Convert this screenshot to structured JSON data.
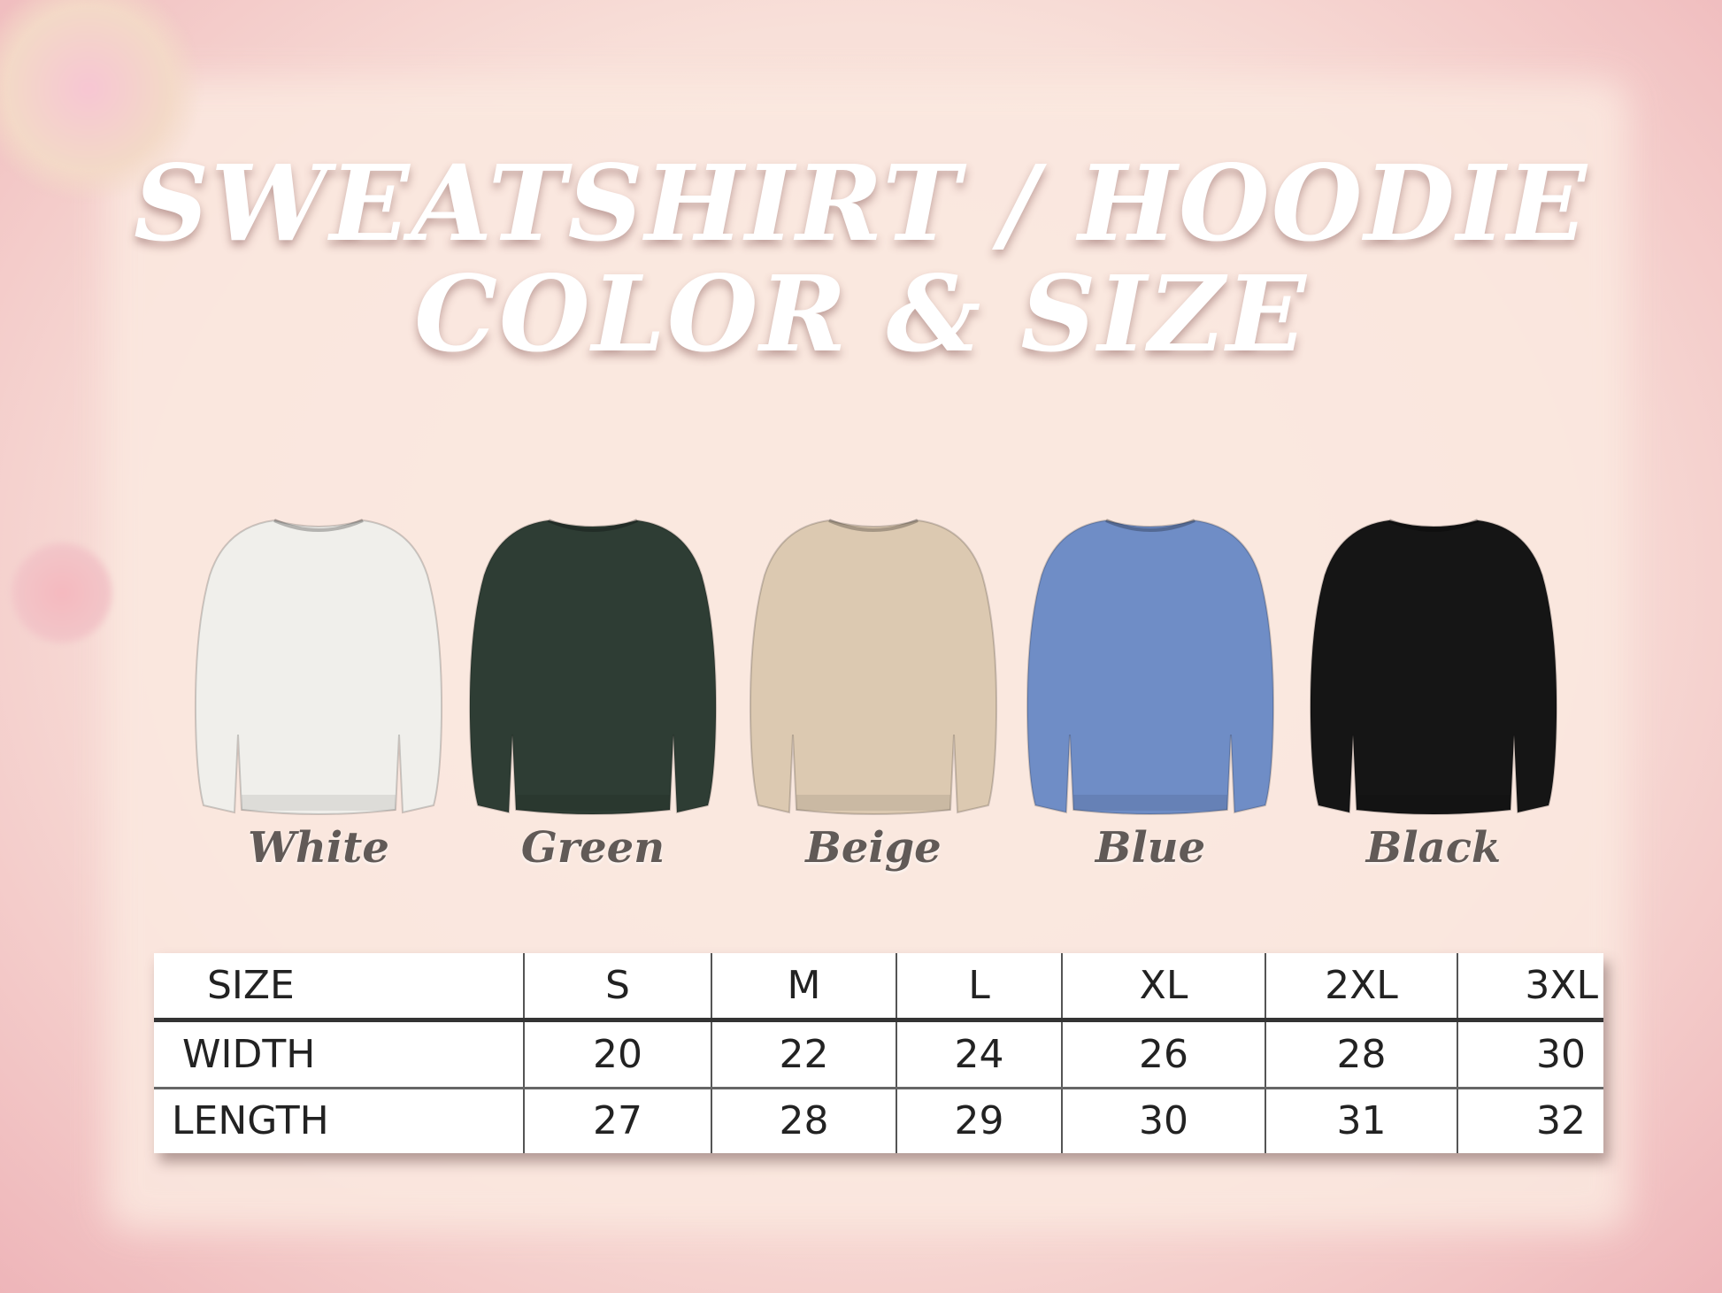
{
  "title": {
    "line1": "SWEATSHIRT / HOODIE",
    "line2": "COLOR & SIZE"
  },
  "colors": [
    {
      "label": "White",
      "hex": "#f0efeb"
    },
    {
      "label": "Green",
      "hex": "#2e3d34"
    },
    {
      "label": "Beige",
      "hex": "#dcc9b1"
    },
    {
      "label": "Blue",
      "hex": "#6f8dc6"
    },
    {
      "label": "Black",
      "hex": "#151515"
    }
  ],
  "size_table": {
    "headers": [
      "SIZE",
      "S",
      "M",
      "L",
      "XL",
      "2XL",
      "3XL"
    ],
    "rows": [
      [
        "WIDTH",
        "20",
        "22",
        "24",
        "26",
        "28",
        "30"
      ],
      [
        "LENGTH",
        "27",
        "28",
        "29",
        "30",
        "31",
        "32"
      ]
    ]
  }
}
